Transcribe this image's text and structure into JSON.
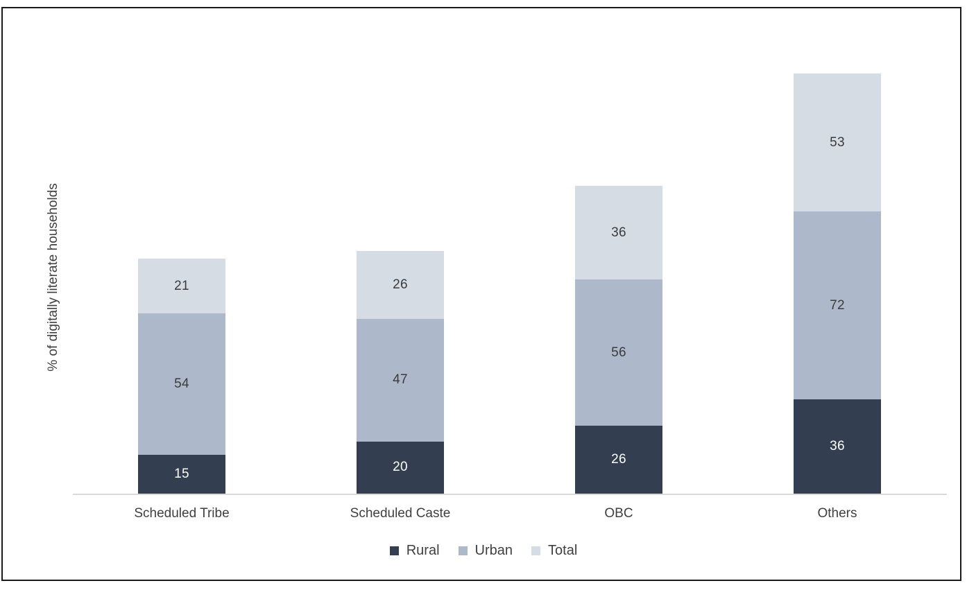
{
  "chart_data": {
    "type": "bar",
    "subtype": "stacked-column",
    "title": "",
    "ylabel": "% of digitally literate households",
    "xlabel": "",
    "categories": [
      "Scheduled Tribe",
      "Scheduled Caste",
      "OBC",
      "Others"
    ],
    "series": [
      {
        "name": "Rural",
        "color": "#333f50",
        "label_color": "#ffffff",
        "values": [
          15,
          20,
          26,
          36
        ]
      },
      {
        "name": "Urban",
        "color": "#adb9ca",
        "label_color": "#3b3b3b",
        "values": [
          54,
          47,
          56,
          72
        ]
      },
      {
        "name": "Total",
        "color": "#d6dce4",
        "label_color": "#3b3b3b",
        "values": [
          21,
          26,
          36,
          53
        ]
      }
    ],
    "stack_totals": [
      90,
      93,
      118,
      161
    ],
    "data_labels_shown": true,
    "legend_position": "bottom",
    "legend_entries": [
      "Rural",
      "Urban",
      "Total"
    ],
    "axis_line_color": "#d9d9d9",
    "gridlines": false,
    "y_axis_ticks_shown": false
  }
}
